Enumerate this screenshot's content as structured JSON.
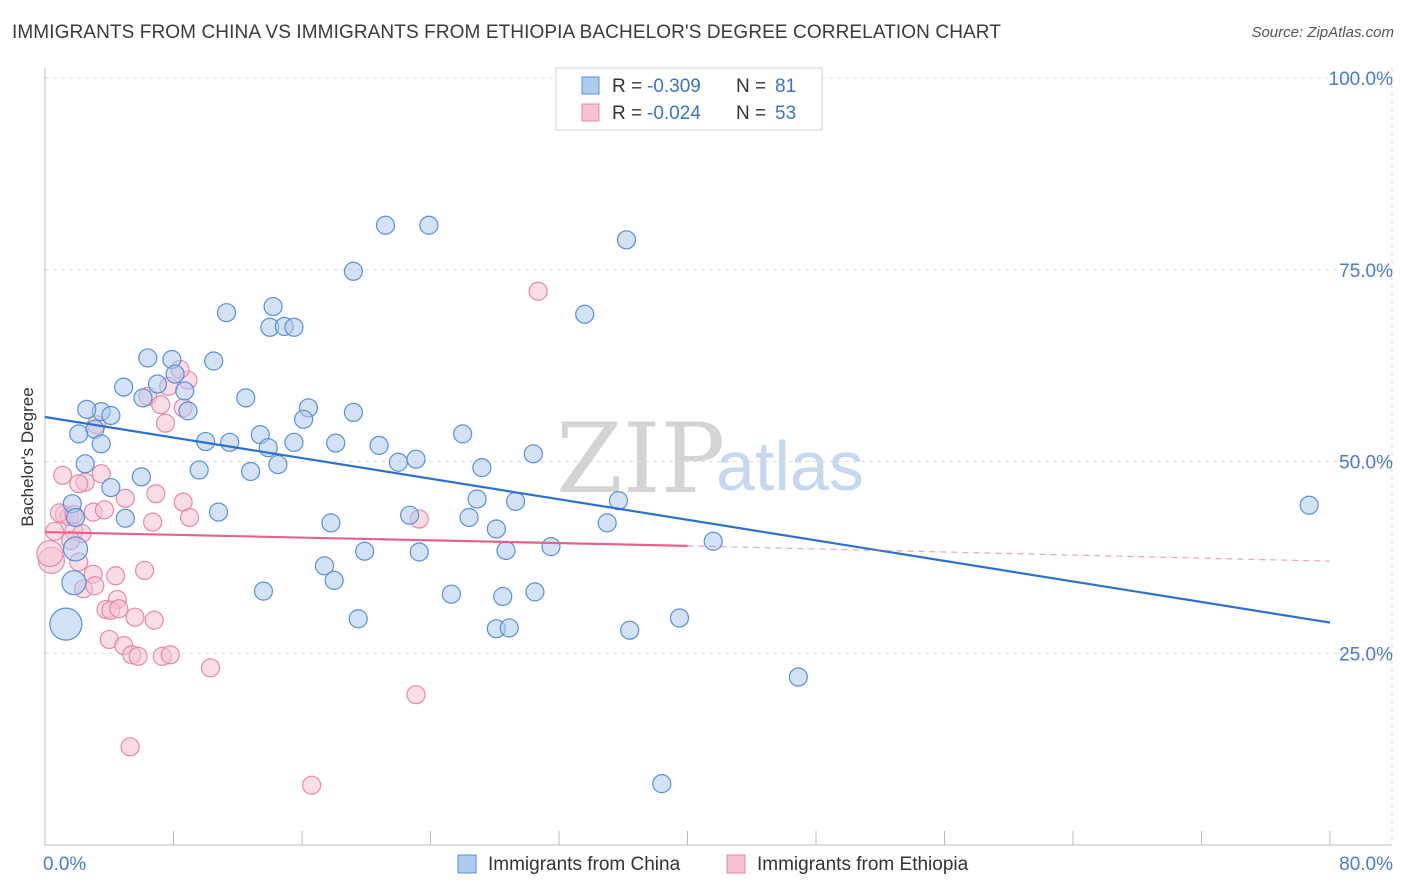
{
  "title": "IMMIGRANTS FROM CHINA VS IMMIGRANTS FROM ETHIOPIA BACHELOR'S DEGREE CORRELATION CHART",
  "source": "Source: ZipAtlas.com",
  "watermark": {
    "zip": "ZIP",
    "atlas": "atlas"
  },
  "colors": {
    "china_fill": "#aecbf0",
    "china_stroke": "#5b8fd6",
    "china_line": "#2e6fcf",
    "ethiopia_fill": "#f7c1d3",
    "ethiopia_stroke": "#e689a8",
    "ethiopia_line": "#e2638f",
    "grid": "#dddddd",
    "axis_label": "#4a7cc7"
  },
  "legend": {
    "rows": [
      {
        "r_label": "R =",
        "r_value": "-0.309",
        "n_label": "N =",
        "n_value": "81"
      },
      {
        "r_label": "R =",
        "r_value": "-0.024",
        "n_label": "N =",
        "n_value": "53"
      }
    ]
  },
  "chart_data": {
    "type": "scatter",
    "title": "IMMIGRANTS FROM CHINA VS IMMIGRANTS FROM ETHIOPIA BACHELOR'S DEGREE CORRELATION CHART",
    "xlabel": "",
    "ylabel": "Bachelor's Degree",
    "xlim": [
      0,
      80
    ],
    "ylim": [
      0,
      100
    ],
    "x_tick_labels": [
      "0.0%",
      "80.0%"
    ],
    "y_ticks": [
      25,
      50,
      75,
      100
    ],
    "y_tick_labels": [
      "25.0%",
      "50.0%",
      "75.0%",
      "100.0%"
    ],
    "grid": true,
    "legend_position": "top-center",
    "series": [
      {
        "name": "Immigrants from China",
        "r": -0.309,
        "n": 81,
        "trend": {
          "x0": 0,
          "y0": 55.8,
          "x1": 80,
          "y1": 29.0,
          "dashed_from": null
        },
        "points": [
          [
            21.2,
            80.8
          ],
          [
            23.9,
            80.8
          ],
          [
            36.2,
            78.9
          ],
          [
            19.2,
            74.8
          ],
          [
            33.6,
            69.2
          ],
          [
            14.2,
            70.2
          ],
          [
            11.3,
            69.4
          ],
          [
            14.0,
            67.5
          ],
          [
            14.9,
            67.6
          ],
          [
            15.5,
            67.5
          ],
          [
            6.4,
            63.5
          ],
          [
            7.9,
            63.3
          ],
          [
            10.5,
            63.1
          ],
          [
            8.1,
            61.4
          ],
          [
            7.0,
            60.1
          ],
          [
            4.9,
            59.7
          ],
          [
            6.1,
            58.3
          ],
          [
            8.7,
            59.2
          ],
          [
            12.5,
            58.3
          ],
          [
            3.5,
            56.5
          ],
          [
            2.6,
            56.8
          ],
          [
            4.1,
            56.0
          ],
          [
            8.9,
            56.6
          ],
          [
            16.4,
            57.0
          ],
          [
            19.2,
            56.4
          ],
          [
            16.1,
            55.5
          ],
          [
            3.1,
            54.2
          ],
          [
            2.1,
            53.6
          ],
          [
            3.5,
            52.3
          ],
          [
            10.0,
            52.6
          ],
          [
            11.5,
            52.5
          ],
          [
            13.4,
            53.5
          ],
          [
            13.9,
            51.8
          ],
          [
            15.5,
            52.5
          ],
          [
            18.1,
            52.4
          ],
          [
            20.8,
            52.1
          ],
          [
            26.0,
            53.6
          ],
          [
            2.5,
            49.7
          ],
          [
            4.1,
            46.6
          ],
          [
            6.0,
            48.0
          ],
          [
            9.6,
            48.9
          ],
          [
            12.8,
            48.7
          ],
          [
            14.5,
            49.6
          ],
          [
            22.0,
            49.9
          ],
          [
            23.1,
            50.3
          ],
          [
            30.4,
            51.0
          ],
          [
            1.7,
            44.5
          ],
          [
            1.9,
            42.7
          ],
          [
            5.0,
            42.6
          ],
          [
            10.8,
            43.4
          ],
          [
            17.8,
            42.0
          ],
          [
            22.7,
            43.0
          ],
          [
            26.4,
            42.7
          ],
          [
            26.9,
            45.1
          ],
          [
            28.1,
            41.2
          ],
          [
            35.7,
            44.9
          ],
          [
            35.0,
            42.0
          ],
          [
            1.9,
            38.6
          ],
          [
            19.9,
            38.3
          ],
          [
            23.3,
            38.2
          ],
          [
            28.7,
            38.4
          ],
          [
            31.5,
            38.9
          ],
          [
            41.6,
            39.6
          ],
          [
            17.4,
            36.4
          ],
          [
            18.0,
            34.5
          ],
          [
            13.6,
            33.1
          ],
          [
            25.3,
            32.7
          ],
          [
            28.5,
            32.4
          ],
          [
            30.5,
            33.0
          ],
          [
            19.5,
            29.5
          ],
          [
            28.1,
            28.2
          ],
          [
            36.4,
            28.0
          ],
          [
            39.5,
            29.6
          ],
          [
            1.8,
            34.2
          ],
          [
            1.3,
            28.8
          ],
          [
            46.9,
            21.9
          ],
          [
            38.4,
            8.0
          ],
          [
            78.7,
            44.3
          ],
          [
            28.9,
            28.3
          ],
          [
            29.3,
            44.8
          ],
          [
            27.2,
            49.2
          ]
        ]
      },
      {
        "name": "Immigrants from Ethiopia",
        "r": -0.024,
        "n": 53,
        "trend": {
          "x0": 0,
          "y0": 40.8,
          "x1": 40.0,
          "y1": 39.0,
          "dashed_from": 40.0,
          "x2": 80,
          "y2": 37.0
        },
        "points": [
          [
            30.7,
            72.2
          ],
          [
            8.9,
            60.6
          ],
          [
            7.7,
            59.8
          ],
          [
            6.4,
            58.5
          ],
          [
            7.2,
            57.4
          ],
          [
            8.6,
            57.0
          ],
          [
            7.5,
            55.0
          ],
          [
            3.2,
            54.8
          ],
          [
            1.1,
            48.2
          ],
          [
            2.5,
            47.3
          ],
          [
            3.5,
            48.4
          ],
          [
            2.1,
            47.1
          ],
          [
            5.0,
            45.2
          ],
          [
            6.9,
            45.8
          ],
          [
            8.6,
            44.7
          ],
          [
            3.0,
            43.4
          ],
          [
            1.2,
            43.1
          ],
          [
            1.5,
            42.8
          ],
          [
            0.9,
            43.3
          ],
          [
            1.8,
            43.1
          ],
          [
            23.3,
            42.5
          ],
          [
            6.7,
            42.1
          ],
          [
            9.0,
            42.7
          ],
          [
            0.6,
            40.9
          ],
          [
            1.8,
            40.9
          ],
          [
            2.3,
            40.6
          ],
          [
            1.6,
            39.7
          ],
          [
            0.4,
            37.1
          ],
          [
            2.1,
            36.9
          ],
          [
            3.0,
            35.3
          ],
          [
            4.4,
            35.1
          ],
          [
            2.4,
            33.4
          ],
          [
            3.1,
            33.8
          ],
          [
            4.5,
            32.0
          ],
          [
            6.2,
            35.8
          ],
          [
            3.8,
            30.7
          ],
          [
            4.1,
            30.6
          ],
          [
            5.6,
            29.7
          ],
          [
            6.8,
            29.3
          ],
          [
            4.0,
            26.8
          ],
          [
            4.9,
            26.0
          ],
          [
            5.4,
            24.8
          ],
          [
            5.8,
            24.6
          ],
          [
            7.3,
            24.6
          ],
          [
            7.8,
            24.8
          ],
          [
            10.3,
            23.1
          ],
          [
            23.1,
            19.6
          ],
          [
            5.3,
            12.8
          ],
          [
            16.6,
            7.8
          ],
          [
            3.7,
            43.7
          ],
          [
            8.4,
            62.0
          ],
          [
            4.6,
            30.8
          ],
          [
            0.3,
            38.0
          ]
        ]
      }
    ]
  },
  "bottom_legend": {
    "china_label": "Immigrants from China",
    "ethiopia_label": "Immigrants from Ethiopia"
  }
}
